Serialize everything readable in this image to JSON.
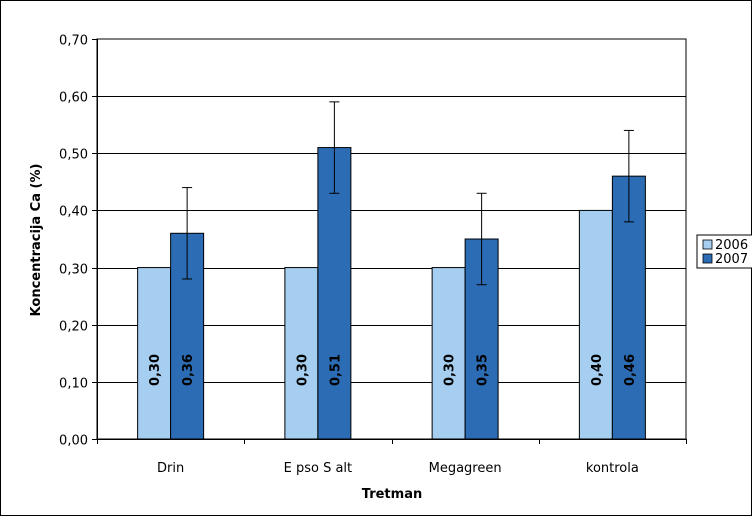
{
  "chart_data": {
    "type": "bar",
    "xlabel": "Tretman",
    "ylabel": "Koncentracija Ca (%)",
    "categories": [
      "Drin",
      "E pso S alt",
      "Megagreen",
      "kontrola"
    ],
    "ylim": [
      0,
      0.7
    ],
    "yticks": [
      "0,00",
      "0,10",
      "0,20",
      "0,30",
      "0,40",
      "0,50",
      "0,60",
      "0,70"
    ],
    "grid": true,
    "legend_position": "right",
    "series": [
      {
        "name": "2006",
        "color": "#a6cef0",
        "values": [
          0.3,
          0.3,
          0.3,
          0.4
        ],
        "labels": [
          "0,30",
          "0,30",
          "0,30",
          "0,40"
        ]
      },
      {
        "name": "2007",
        "color": "#2b6cb4",
        "values": [
          0.36,
          0.51,
          0.35,
          0.46
        ],
        "labels": [
          "0,36",
          "0,51",
          "0,35",
          "0,46"
        ],
        "error": [
          0.08,
          0.08,
          0.08,
          0.08
        ]
      }
    ]
  }
}
